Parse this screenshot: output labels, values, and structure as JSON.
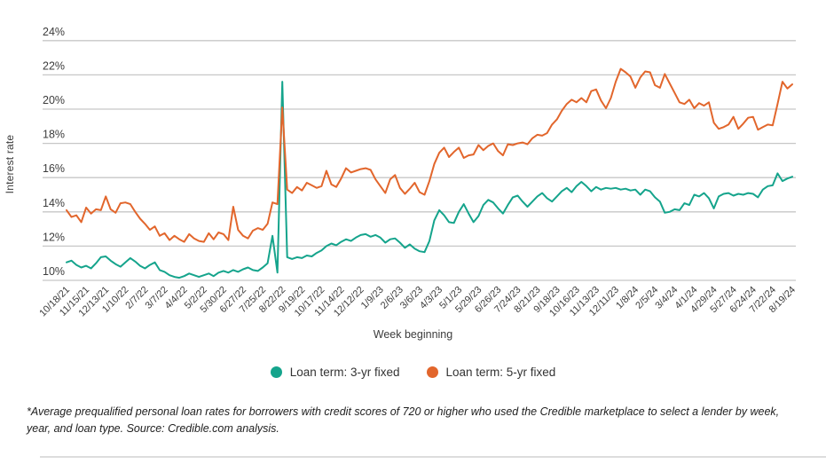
{
  "chart_data": {
    "type": "line",
    "title": "",
    "xlabel": "Week beginning",
    "ylabel": "Interest rate",
    "ylim": [
      10,
      24
    ],
    "ytick_step": 2,
    "ytick_suffix": "%",
    "grid": true,
    "legend_position": "bottom",
    "x_label_every_n_points": 4,
    "x_labels": [
      "10/18/21",
      "11/15/21",
      "12/13/21",
      "1/10/22",
      "2/7/22",
      "3/7/22",
      "4/4/22",
      "5/2/22",
      "5/30/22",
      "6/27/22",
      "7/25/22",
      "8/22/22",
      "9/19/22",
      "10/17/22",
      "11/14/22",
      "12/12/22",
      "1/9/23",
      "2/6/23",
      "3/6/23",
      "4/3/23",
      "5/1/23",
      "5/29/23",
      "6/26/23",
      "7/24/23",
      "8/21/23",
      "9/18/23",
      "10/16/23",
      "11/13/23",
      "12/11/23",
      "1/8/24",
      "2/5/24",
      "3/4/24",
      "4/1/24",
      "4/29/24",
      "5/27/24",
      "6/24/24",
      "7/22/24",
      "8/19/24"
    ],
    "series": [
      {
        "name": "Loan term: 3-yr fixed",
        "color": "#15a48c",
        "values": [
          11.05,
          11.15,
          10.9,
          10.75,
          10.85,
          10.7,
          11.0,
          11.35,
          11.4,
          11.15,
          10.95,
          10.8,
          11.05,
          11.3,
          11.1,
          10.85,
          10.7,
          10.9,
          11.05,
          10.6,
          10.5,
          10.3,
          10.2,
          10.15,
          10.25,
          10.4,
          10.3,
          10.2,
          10.3,
          10.4,
          10.25,
          10.45,
          10.55,
          10.45,
          10.6,
          10.5,
          10.65,
          10.75,
          10.6,
          10.55,
          10.75,
          11.0,
          12.6,
          10.45,
          21.6,
          11.35,
          11.25,
          11.35,
          11.3,
          11.45,
          11.4,
          11.6,
          11.75,
          12.0,
          12.15,
          12.05,
          12.25,
          12.4,
          12.3,
          12.5,
          12.65,
          12.7,
          12.55,
          12.65,
          12.5,
          12.2,
          12.4,
          12.45,
          12.2,
          11.9,
          12.1,
          11.85,
          11.7,
          11.65,
          12.3,
          13.5,
          14.1,
          13.8,
          13.4,
          13.35,
          14.0,
          14.45,
          13.9,
          13.4,
          13.75,
          14.4,
          14.7,
          14.55,
          14.2,
          13.9,
          14.4,
          14.85,
          14.95,
          14.6,
          14.3,
          14.6,
          14.9,
          15.1,
          14.8,
          14.6,
          14.9,
          15.2,
          15.4,
          15.15,
          15.5,
          15.75,
          15.5,
          15.2,
          15.45,
          15.3,
          15.4,
          15.35,
          15.4,
          15.3,
          15.35,
          15.25,
          15.3,
          15.0,
          15.3,
          15.2,
          14.85,
          14.6,
          13.95,
          14.0,
          14.15,
          14.1,
          14.5,
          14.4,
          15.0,
          14.9,
          15.1,
          14.8,
          14.2,
          14.9,
          15.05,
          15.1,
          14.95,
          15.05,
          15.0,
          15.1,
          15.05,
          14.85,
          15.3,
          15.5,
          15.55,
          16.25,
          15.8,
          15.95,
          16.05
        ]
      },
      {
        "name": "Loan term: 5-yr fixed",
        "color": "#e2662c",
        "values": [
          14.1,
          13.7,
          13.8,
          13.4,
          14.25,
          13.9,
          14.15,
          14.1,
          14.9,
          14.15,
          13.95,
          14.5,
          14.55,
          14.45,
          14.0,
          13.6,
          13.3,
          12.95,
          13.15,
          12.6,
          12.75,
          12.35,
          12.6,
          12.4,
          12.25,
          12.7,
          12.45,
          12.3,
          12.25,
          12.75,
          12.4,
          12.8,
          12.7,
          12.35,
          14.3,
          12.95,
          12.6,
          12.45,
          12.9,
          13.05,
          12.95,
          13.3,
          14.55,
          14.45,
          20.1,
          15.3,
          15.1,
          15.45,
          15.25,
          15.7,
          15.55,
          15.4,
          15.5,
          16.4,
          15.6,
          15.45,
          15.95,
          16.55,
          16.3,
          16.4,
          16.5,
          16.55,
          16.45,
          15.9,
          15.5,
          15.1,
          15.9,
          16.15,
          15.4,
          15.05,
          15.35,
          15.7,
          15.15,
          15.0,
          15.8,
          16.8,
          17.45,
          17.75,
          17.2,
          17.5,
          17.75,
          17.15,
          17.3,
          17.35,
          17.9,
          17.6,
          17.85,
          18.0,
          17.55,
          17.3,
          17.95,
          17.9,
          18.0,
          18.05,
          17.95,
          18.3,
          18.5,
          18.45,
          18.6,
          19.1,
          19.4,
          19.9,
          20.3,
          20.55,
          20.4,
          20.65,
          20.4,
          21.05,
          21.15,
          20.5,
          20.05,
          20.65,
          21.6,
          22.35,
          22.15,
          21.9,
          21.25,
          21.85,
          22.2,
          22.15,
          21.4,
          21.25,
          22.05,
          21.5,
          20.95,
          20.4,
          20.3,
          20.55,
          20.05,
          20.35,
          20.2,
          20.4,
          19.2,
          18.85,
          18.95,
          19.1,
          19.55,
          18.85,
          19.15,
          19.5,
          19.55,
          18.8,
          18.95,
          19.1,
          19.05,
          20.3,
          21.6,
          21.2,
          21.45
        ]
      }
    ],
    "grid_color": "#c7c7c7",
    "tick_label_color": "#3c3c3c"
  },
  "footnote": {
    "text": "*Average prequalified personal loan rates for borrowers with credit scores of 720 or higher who used the Credible marketplace to select a lender by week, year, and loan type. Source: Credible.com analysis."
  }
}
